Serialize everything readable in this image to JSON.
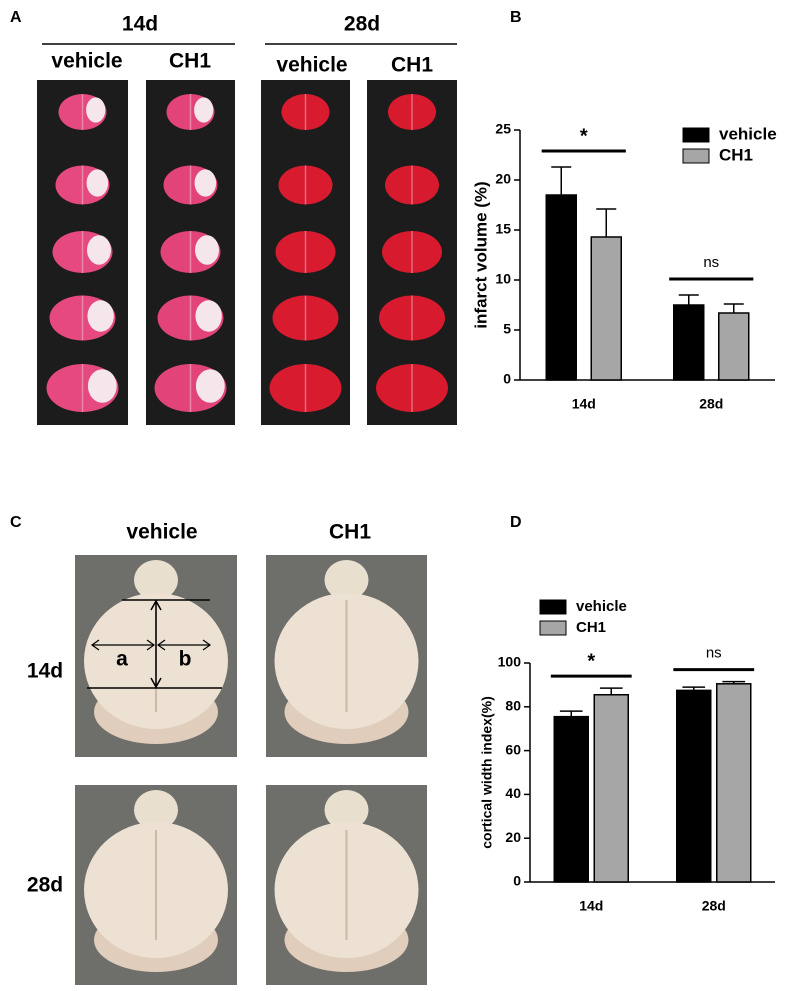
{
  "panel_labels": [
    "A",
    "B",
    "C",
    "D"
  ],
  "panel_a": {
    "groups": [
      {
        "label": "14d",
        "columns": [
          "vehicle",
          "CH1"
        ]
      },
      {
        "label": "28d",
        "columns": [
          "vehicle",
          "CH1"
        ]
      }
    ]
  },
  "panel_c": {
    "columns": [
      "vehicle",
      "CH1"
    ],
    "rows": [
      "14d",
      "28d"
    ],
    "annotations": [
      "a",
      "b"
    ]
  },
  "chart_data": [
    {
      "type": "bar",
      "ylabel": "infarct volume (%)",
      "categories": [
        "14d",
        "28d"
      ],
      "series": [
        {
          "name": "vehicle",
          "color": "#000000",
          "values": [
            18.5,
            7.5
          ],
          "errors": [
            2.8,
            1.0
          ]
        },
        {
          "name": "CH1",
          "color": "#a6a6a6",
          "values": [
            14.3,
            6.7
          ],
          "errors": [
            2.8,
            0.9
          ]
        }
      ],
      "significance": [
        "*",
        "ns"
      ],
      "ylim": [
        0,
        25
      ],
      "yticks": [
        0,
        5,
        10,
        15,
        20,
        25
      ],
      "legend": "upper right"
    },
    {
      "type": "bar",
      "ylabel": "cortical width index(%)",
      "categories": [
        "14d",
        "28d"
      ],
      "series": [
        {
          "name": "vehicle",
          "color": "#000000",
          "values": [
            75.5,
            87.5
          ],
          "errors": [
            2.5,
            1.5
          ]
        },
        {
          "name": "CH1",
          "color": "#a6a6a6",
          "values": [
            85.5,
            90.5
          ],
          "errors": [
            3.0,
            1.0
          ]
        }
      ],
      "significance": [
        "*",
        "ns"
      ],
      "ylim": [
        0,
        100
      ],
      "yticks": [
        0,
        20,
        40,
        60,
        80,
        100
      ],
      "legend": "upper left"
    }
  ]
}
